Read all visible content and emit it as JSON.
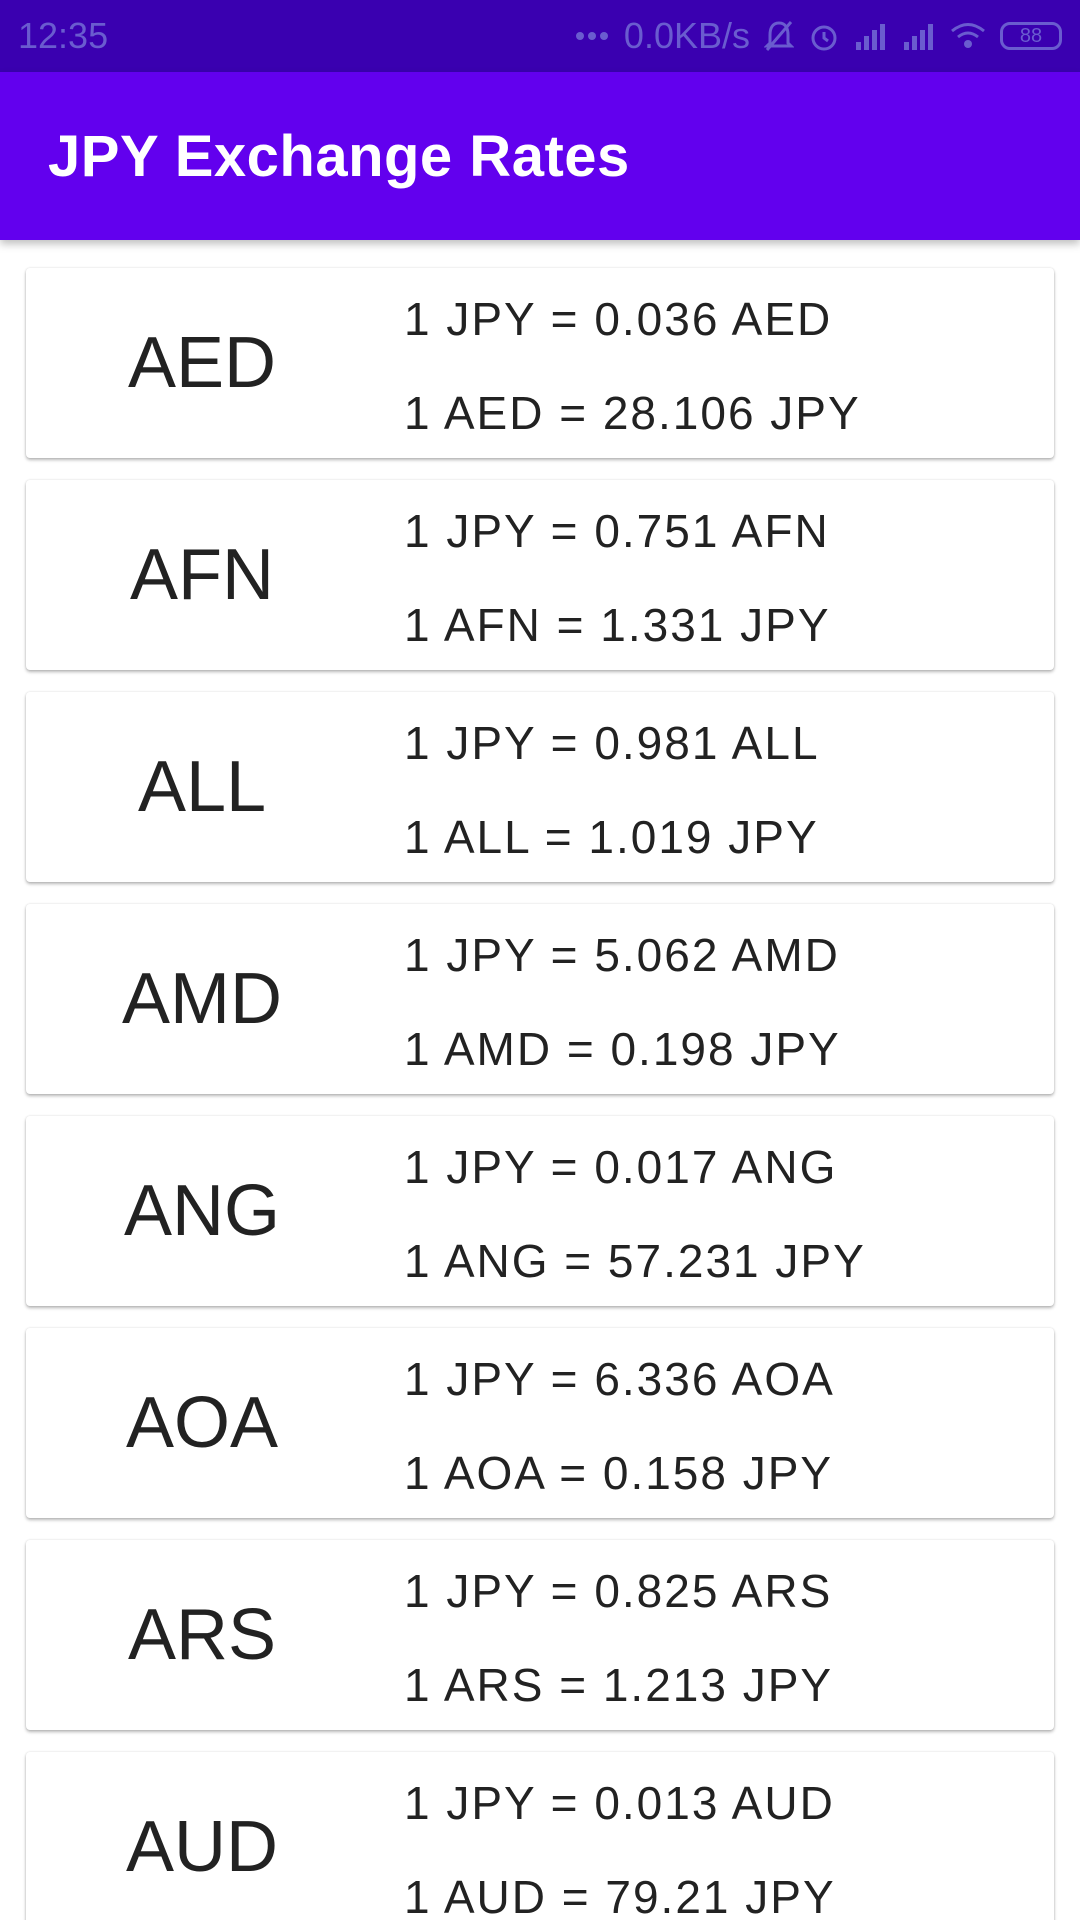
{
  "status_bar": {
    "time": "12:35",
    "network_speed": "0.0KB/s",
    "battery": "88",
    "icons": [
      "more-dots-icon",
      "mute-bell-icon",
      "alarm-icon",
      "signal-icon",
      "signal-icon-2",
      "wifi-icon",
      "battery-icon"
    ]
  },
  "app_bar": {
    "title": "JPY Exchange Rates"
  },
  "rates": [
    {
      "code": "AED",
      "line1": "1 JPY = 0.036 AED",
      "line2": "1 AED = 28.106 JPY"
    },
    {
      "code": "AFN",
      "line1": "1 JPY = 0.751 AFN",
      "line2": "1 AFN = 1.331 JPY"
    },
    {
      "code": "ALL",
      "line1": "1 JPY = 0.981 ALL",
      "line2": "1 ALL = 1.019 JPY"
    },
    {
      "code": "AMD",
      "line1": "1 JPY = 5.062 AMD",
      "line2": "1 AMD = 0.198 JPY"
    },
    {
      "code": "ANG",
      "line1": "1 JPY = 0.017 ANG",
      "line2": "1 ANG = 57.231 JPY"
    },
    {
      "code": "AOA",
      "line1": "1 JPY = 6.336 AOA",
      "line2": "1 AOA = 0.158 JPY"
    },
    {
      "code": "ARS",
      "line1": "1 JPY = 0.825 ARS",
      "line2": "1 ARS = 1.213 JPY"
    },
    {
      "code": "AUD",
      "line1": "1 JPY = 0.013 AUD",
      "line2": "1 AUD = 79.21 JPY"
    }
  ],
  "colors": {
    "status_bar": "#3a00b0",
    "app_bar": "#6200ee",
    "text": "#222222"
  }
}
